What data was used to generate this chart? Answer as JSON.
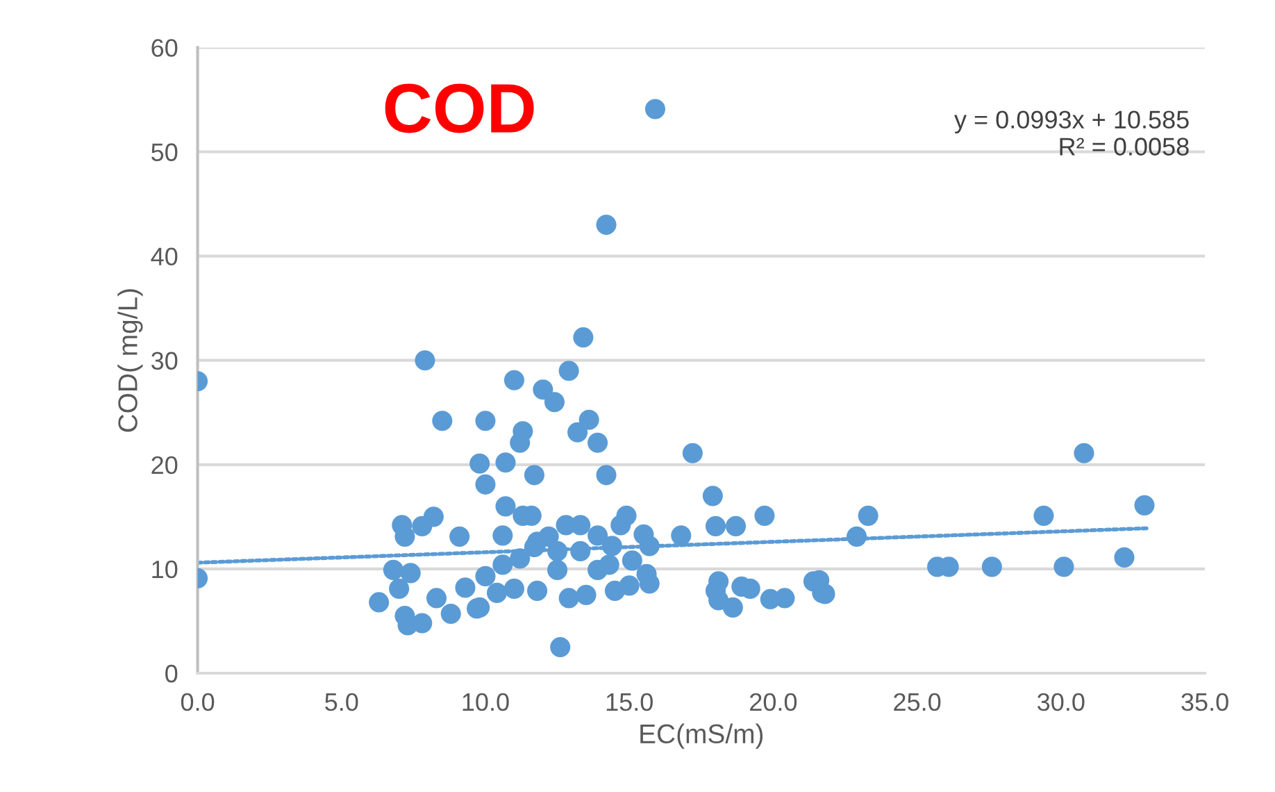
{
  "chart_data": {
    "type": "scatter",
    "xlabel": "EC(mS/m)",
    "ylabel": "COD( mg/L)",
    "annotations": [
      "COD",
      "y = 0.0993x + 10.585\nR² = 0.0058"
    ],
    "xlim": [
      0,
      35
    ],
    "ylim": [
      0,
      60
    ],
    "xticks": [
      {
        "value": 0,
        "label": "0.0"
      },
      {
        "value": 5,
        "label": "5.0"
      },
      {
        "value": 10,
        "label": "10.0"
      },
      {
        "value": 15,
        "label": "15.0"
      },
      {
        "value": 20,
        "label": "20.0"
      },
      {
        "value": 25,
        "label": "25.0"
      },
      {
        "value": 30,
        "label": "30.0"
      },
      {
        "value": 35,
        "label": "35.0"
      }
    ],
    "yticks": [
      0,
      10,
      20,
      30,
      40,
      50,
      60
    ],
    "grid": "y",
    "marker": "circle",
    "series": [
      {
        "color": "#5b9bd5",
        "x": [
          0,
          0,
          6.3,
          6.8,
          7.4,
          7.0,
          7.2,
          7.3,
          7.8,
          8.3,
          8.8,
          9.3,
          9.7,
          10.0,
          7.1,
          7.2,
          7.8,
          8.2,
          9.1,
          9.8,
          10.0,
          8.5,
          10.0,
          7.9,
          11.0,
          12.0,
          12.4,
          12.9,
          13.4,
          11.3,
          11.2,
          13.6,
          13.2,
          13.9,
          10.7,
          11.7,
          14.2,
          17.2,
          10.7,
          11.3,
          11.6,
          14.9,
          14.7,
          15.5,
          15.7,
          16.8,
          17.9,
          18.0,
          18.7,
          19.7,
          10.6,
          11.7,
          12.2,
          12.8,
          13.3,
          13.9,
          14.4,
          10.6,
          11.2,
          11.8,
          12.5,
          13.3,
          11.0,
          11.8,
          12.5,
          12.9,
          13.5,
          13.9,
          14.3,
          14.5,
          15.0,
          15.1,
          15.6,
          15.7,
          12.6,
          9.8,
          10.4,
          18.1,
          18.0,
          18.1,
          18.6,
          18.9,
          19.2,
          19.9,
          23.3,
          22.9,
          25.7,
          26.1,
          27.6,
          29.4,
          30.1,
          30.8,
          32.2,
          32.9,
          20.4,
          21.4,
          21.6,
          21.7,
          21.8,
          15.9,
          14.2
        ],
        "values": [
          28,
          9.1,
          6.8,
          9.9,
          9.6,
          8.1,
          5.5,
          4.6,
          4.8,
          7.2,
          5.7,
          8.2,
          6.2,
          9.3,
          14.2,
          13.1,
          14.1,
          15.0,
          13.1,
          20.1,
          18.1,
          24.2,
          24.2,
          30.0,
          28.1,
          27.2,
          26.0,
          29.0,
          32.2,
          23.2,
          22.1,
          24.3,
          23.1,
          22.1,
          20.2,
          19.0,
          19.0,
          21.1,
          16.0,
          15.1,
          15.1,
          15.1,
          14.2,
          13.3,
          12.2,
          13.2,
          17.0,
          14.1,
          14.1,
          15.1,
          13.2,
          12.1,
          13.1,
          14.2,
          14.2,
          13.2,
          12.2,
          10.4,
          11.0,
          12.6,
          11.7,
          11.7,
          8.1,
          7.9,
          9.9,
          7.2,
          7.5,
          9.9,
          10.4,
          7.9,
          8.4,
          10.8,
          9.5,
          8.6,
          2.5,
          6.3,
          7.7,
          8.8,
          7.9,
          7.0,
          6.3,
          8.3,
          8.1,
          7.1,
          15.1,
          13.1,
          10.2,
          10.2,
          10.2,
          15.1,
          10.2,
          21.1,
          11.1,
          16.1,
          7.2,
          8.8,
          8.9,
          7.7,
          7.6,
          54.1,
          43.0
        ]
      },
      {
        "type": "line",
        "color": "#5b9bd5",
        "line_style": "dotted",
        "marker": "none",
        "x": [
          0,
          33
        ],
        "values": [
          10.6,
          13.9
        ]
      }
    ]
  }
}
